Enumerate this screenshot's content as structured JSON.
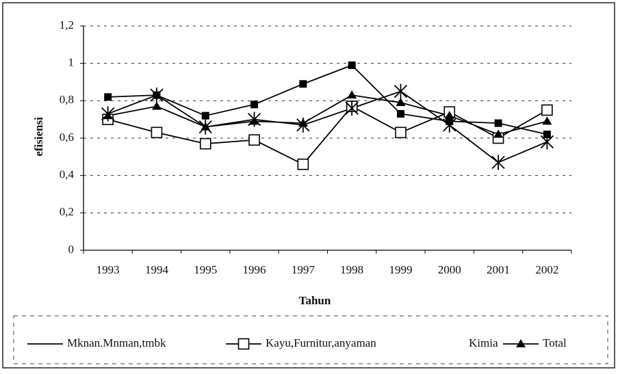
{
  "chart_data": {
    "type": "line",
    "x_label": "Tahun",
    "y_label": "efisiensi",
    "categories": [
      "1993",
      "1994",
      "1995",
      "1996",
      "1997",
      "1998",
      "1999",
      "2000",
      "2001",
      "2002"
    ],
    "series": [
      {
        "name": "Mknan.Mnman,tmbk",
        "color": "#000000",
        "marker": "square-filled",
        "values": [
          0.82,
          0.83,
          0.72,
          0.78,
          0.89,
          0.99,
          0.73,
          0.69,
          0.68,
          0.62
        ]
      },
      {
        "name": "Kayu,Furnitur,anyaman",
        "color": "#000000",
        "marker": "square-open",
        "values": [
          0.7,
          0.63,
          0.57,
          0.59,
          0.46,
          0.77,
          0.63,
          0.74,
          0.6,
          0.75
        ]
      },
      {
        "name": "Kimia",
        "color": "#000000",
        "marker": "star",
        "values": [
          0.73,
          0.83,
          0.66,
          0.7,
          0.67,
          0.76,
          0.85,
          0.67,
          0.47,
          0.58
        ]
      },
      {
        "name": "Total",
        "color": "#000000",
        "marker": "triangle",
        "values": [
          0.72,
          0.77,
          0.66,
          0.69,
          0.68,
          0.83,
          0.79,
          0.72,
          0.62,
          0.69
        ]
      }
    ],
    "ylim": [
      0,
      1.2
    ],
    "yticks": [
      0,
      {
        "value": 0.2,
        "label": "0,2"
      },
      {
        "value": 0.4,
        "label": "0,4"
      },
      {
        "value": 0.6,
        "label": "0,6"
      },
      {
        "value": 0.8,
        "label": "0,8"
      },
      1,
      {
        "value": 1.2,
        "label": "1,2"
      }
    ],
    "grid": true,
    "legend": "bottom"
  }
}
